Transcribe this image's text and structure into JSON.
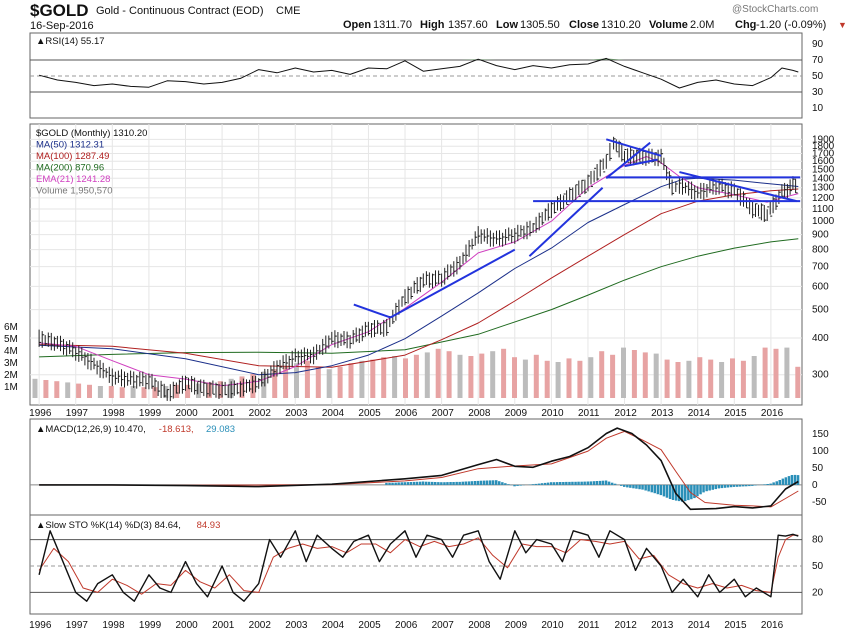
{
  "header": {
    "symbol": "$GOLD",
    "description": "Gold - Continuous Contract (EOD)",
    "exchange": "CME",
    "date": "16-Sep-2016",
    "watermark": "@StockCharts.com",
    "open_label": "Open",
    "open_value": "1311.70",
    "high_label": "High",
    "high_value": "1357.60",
    "low_label": "Low",
    "low_value": "1305.50",
    "close_label": "Close",
    "close_value": "1310.20",
    "volume_label": "Volume",
    "volume_value": "2.0M",
    "chg_label": "Chg",
    "chg_value": "-1.20 (-0.09%)",
    "chg_arrow": "▼",
    "colors": {
      "down": "#c0392b",
      "text": "#111111",
      "watermark": "#777777"
    }
  },
  "chart_data": [
    {
      "type": "line",
      "title": "RSI(14) 55.17",
      "legend": "▲RSI(14) 55.17",
      "yticks": [
        90,
        70,
        50,
        30,
        10
      ],
      "ylim": [
        0,
        100
      ],
      "reference_lines": [
        70,
        50,
        30
      ],
      "x": [
        1996.0,
        1996.5,
        1997.0,
        1997.5,
        1998.0,
        1998.5,
        1999.0,
        1999.5,
        2000.0,
        2000.5,
        2001.0,
        2001.5,
        2002.0,
        2002.5,
        2003.0,
        2003.5,
        2004.0,
        2004.5,
        2005.0,
        2005.5,
        2006.0,
        2006.5,
        2007.0,
        2007.5,
        2008.0,
        2008.5,
        2009.0,
        2009.5,
        2010.0,
        2010.5,
        2011.0,
        2011.5,
        2012.0,
        2012.5,
        2013.0,
        2013.5,
        2014.0,
        2014.5,
        2015.0,
        2015.5,
        2016.0,
        2016.3,
        2016.6,
        2016.75
      ],
      "values": [
        51,
        45,
        42,
        38,
        40,
        37,
        36,
        44,
        43,
        40,
        42,
        47,
        58,
        54,
        60,
        55,
        57,
        52,
        60,
        59,
        69,
        56,
        59,
        62,
        71,
        63,
        58,
        63,
        60,
        64,
        65,
        72,
        62,
        54,
        46,
        35,
        42,
        45,
        40,
        38,
        48,
        60,
        57,
        55
      ],
      "colors": {
        "line": "#111111",
        "fill_high": "#5a8a5a",
        "fill_low": "#5a8a5a"
      }
    },
    {
      "type": "line",
      "title": "$GOLD (Monthly) 1310.20",
      "legend": [
        {
          "label": "$GOLD (Monthly) 1310.20",
          "color": "#111111"
        },
        {
          "label": "MA(50) 1312.31",
          "color": "#1b2f8a"
        },
        {
          "label": "MA(100) 1287.49",
          "color": "#b02020"
        },
        {
          "label": "MA(200) 870.96",
          "color": "#206b20"
        },
        {
          "label": "EMA(21) 1241.28",
          "color": "#d040c0"
        },
        {
          "label": "Volume 1,950,570",
          "color": "#777777"
        }
      ],
      "price_yticks": [
        1900,
        1800,
        1700,
        1600,
        1500,
        1400,
        1300,
        1200,
        1100,
        1000,
        900,
        800,
        700,
        600,
        500,
        400,
        300
      ],
      "volume_yticks": [
        "6M",
        "5M",
        "4M",
        "3M",
        "2M",
        "1M"
      ],
      "volume_tick_values": [
        6,
        5,
        4,
        3,
        2,
        1
      ],
      "xticks": [
        "1996",
        "1997",
        "1998",
        "1999",
        "2000",
        "2001",
        "2002",
        "2003",
        "2004",
        "2005",
        "2006",
        "2007",
        "2008",
        "2009",
        "2010",
        "2011",
        "2012",
        "2013",
        "2014",
        "2015",
        "2016"
      ],
      "close_series": {
        "x": [
          1996.0,
          1996.5,
          1997.0,
          1997.5,
          1998.0,
          1998.5,
          1999.0,
          1999.5,
          2000.0,
          2000.5,
          2001.0,
          2001.5,
          2002.0,
          2002.5,
          2003.0,
          2003.5,
          2004.0,
          2004.5,
          2005.0,
          2005.5,
          2006.0,
          2006.5,
          2007.0,
          2007.5,
          2008.0,
          2008.5,
          2009.0,
          2009.5,
          2010.0,
          2010.5,
          2011.0,
          2011.5,
          2011.7,
          2012.0,
          2012.5,
          2013.0,
          2013.3,
          2013.5,
          2014.0,
          2014.5,
          2015.0,
          2015.5,
          2015.9,
          2016.3,
          2016.6,
          2016.75
        ],
        "values": [
          400,
          385,
          360,
          325,
          295,
          290,
          287,
          258,
          282,
          270,
          266,
          270,
          282,
          318,
          345,
          350,
          398,
          395,
          430,
          435,
          550,
          630,
          640,
          720,
          900,
          870,
          900,
          950,
          1100,
          1220,
          1350,
          1600,
          1850,
          1670,
          1660,
          1650,
          1300,
          1330,
          1250,
          1320,
          1270,
          1100,
          1060,
          1250,
          1330,
          1310
        ]
      },
      "ma50": {
        "x": [
          1996.0,
          1998.0,
          2000.0,
          2002.0,
          2003.0,
          2004.0,
          2005.0,
          2006.0,
          2007.0,
          2008.0,
          2009.0,
          2010.0,
          2011.0,
          2012.0,
          2013.0,
          2013.6,
          2014.0,
          2015.0,
          2016.0,
          2016.75
        ],
        "values": [
          378,
          368,
          340,
          300,
          305,
          322,
          350,
          398,
          475,
          570,
          690,
          810,
          990,
          1140,
          1310,
          1390,
          1400,
          1380,
          1340,
          1312
        ]
      },
      "ma100": {
        "x": [
          1996.0,
          1998.0,
          2000.0,
          2002.0,
          2004.0,
          2006.0,
          2007.0,
          2008.0,
          2009.0,
          2010.0,
          2011.0,
          2012.0,
          2013.0,
          2014.0,
          2015.0,
          2016.0,
          2016.75
        ],
        "values": [
          380,
          375,
          355,
          322,
          318,
          350,
          395,
          450,
          535,
          640,
          760,
          900,
          1060,
          1170,
          1230,
          1270,
          1287
        ]
      },
      "ma200": {
        "x": [
          1996.0,
          1998.0,
          2000.0,
          2002.0,
          2004.0,
          2006.0,
          2008.0,
          2010.0,
          2011.0,
          2012.0,
          2013.0,
          2014.0,
          2015.0,
          2016.0,
          2016.75
        ],
        "values": [
          345,
          352,
          357,
          358,
          355,
          365,
          412,
          500,
          560,
          630,
          700,
          760,
          810,
          850,
          871
        ]
      },
      "ema21": {
        "x": [
          1996.0,
          1997.0,
          1998.0,
          1999.0,
          2000.0,
          2001.0,
          2002.0,
          2003.0,
          2004.0,
          2005.0,
          2006.0,
          2007.0,
          2008.0,
          2009.0,
          2010.0,
          2011.0,
          2012.0,
          2012.6,
          2013.0,
          2013.5,
          2014.0,
          2015.0,
          2015.9,
          2016.4,
          2016.75
        ],
        "values": [
          385,
          375,
          335,
          300,
          290,
          275,
          285,
          320,
          380,
          420,
          505,
          620,
          780,
          850,
          1000,
          1300,
          1550,
          1660,
          1580,
          1420,
          1300,
          1230,
          1160,
          1210,
          1241
        ]
      },
      "volume_millions": [
        1.6,
        1.5,
        1.4,
        1.3,
        1.2,
        1.1,
        1.0,
        1.0,
        0.9,
        1.0,
        0.9,
        0.9,
        1.0,
        1.1,
        1.1,
        1.2,
        1.3,
        1.4,
        1.6,
        1.8,
        2.0,
        2.2,
        2.4,
        2.6,
        2.9,
        3.1,
        2.6,
        2.4,
        2.6,
        2.9,
        3.1,
        3.2,
        3.4,
        3.5,
        3.3,
        3.6,
        3.8,
        4.1,
        3.9,
        3.6,
        3.5,
        3.7,
        3.9,
        4.1,
        3.4,
        3.2,
        3.6,
        3.1,
        3.0,
        3.3,
        3.1,
        3.4,
        3.9,
        3.6,
        4.2,
        4.0,
        3.8,
        3.7,
        3.2,
        3.0,
        3.1,
        3.4,
        3.2,
        3.0,
        3.3,
        3.1,
        3.5,
        4.2,
        4.1,
        4.2,
        2.6
      ],
      "trendlines_data_units": [
        {
          "x": [
            2004.6,
            2005.6
          ],
          "y": [
            520,
            470
          ]
        },
        {
          "x": [
            2005.6,
            2009.0
          ],
          "y": [
            470,
            800
          ]
        },
        {
          "x": [
            2009.4,
            2011.4
          ],
          "y": [
            760,
            1300
          ]
        },
        {
          "x": [
            2011.5,
            2012.7
          ],
          "y": [
            1400,
            1850
          ]
        },
        {
          "x": [
            2011.5,
            2013.0
          ],
          "y": [
            1900,
            1670
          ]
        },
        {
          "x": [
            2012.0,
            2012.9
          ],
          "y": [
            1540,
            1620
          ]
        },
        {
          "x": [
            2013.5,
            2016.7
          ],
          "y": [
            1470,
            1170
          ]
        },
        {
          "x": [
            2011.5,
            2016.8
          ],
          "y": [
            1410,
            1410
          ]
        },
        {
          "x": [
            2009.5,
            2016.8
          ],
          "y": [
            1170,
            1170
          ]
        }
      ],
      "colors": {
        "candle": "#222222",
        "volume_up": "#e7a3a3",
        "volume_down": "#bcbcbc",
        "trendline": "#2233dd"
      }
    },
    {
      "type": "line",
      "title": "MACD(12,26,9) 10.470, -18.613, 29.083",
      "legend": [
        {
          "label": "▲MACD(12,26,9) 10.470,",
          "color": "#111111"
        },
        {
          "label": "-18.613,",
          "color": "#c0392b"
        },
        {
          "label": "29.083",
          "color": "#2a8fb8"
        }
      ],
      "yticks": [
        150,
        100,
        50,
        0,
        -50
      ],
      "ylim": [
        -80,
        180
      ],
      "macd": {
        "x": [
          1996.0,
          1998.0,
          2000.0,
          2002.0,
          2004.0,
          2006.0,
          2007.0,
          2008.0,
          2008.5,
          2009.0,
          2009.5,
          2010.0,
          2010.5,
          2011.0,
          2011.5,
          2011.8,
          2012.2,
          2012.6,
          2013.0,
          2013.4,
          2013.8,
          2014.5,
          2015.0,
          2015.5,
          2016.0,
          2016.4,
          2016.75
        ],
        "values": [
          0,
          0,
          -2,
          -5,
          2,
          18,
          28,
          60,
          75,
          55,
          52,
          70,
          84,
          110,
          152,
          168,
          152,
          118,
          72,
          -25,
          -72,
          -70,
          -64,
          -68,
          -62,
          -12,
          10
        ]
      },
      "signal": {
        "x": [
          1996.0,
          2000.0,
          2004.0,
          2006.0,
          2007.0,
          2008.0,
          2009.0,
          2010.0,
          2011.0,
          2011.5,
          2012.0,
          2012.5,
          2013.0,
          2013.4,
          2013.8,
          2014.2,
          2015.0,
          2015.5,
          2016.0,
          2016.4,
          2016.75
        ],
        "values": [
          0,
          -1,
          1,
          12,
          22,
          48,
          56,
          62,
          100,
          138,
          158,
          132,
          104,
          40,
          -22,
          -52,
          -60,
          -62,
          -65,
          -40,
          -18
        ]
      },
      "histogram": {
        "x": [
          2005.5,
          2006.0,
          2006.5,
          2007.0,
          2007.5,
          2008.0,
          2008.5,
          2009.0,
          2010.0,
          2011.0,
          2011.5,
          2012.0,
          2012.5,
          2013.0,
          2013.3,
          2013.6,
          2013.9,
          2014.2,
          2014.6,
          2015.0,
          2015.5,
          2016.0,
          2016.2,
          2016.4,
          2016.6,
          2016.75
        ],
        "values": [
          6,
          8,
          10,
          8,
          9,
          12,
          14,
          -4,
          8,
          10,
          13,
          -6,
          -14,
          -30,
          -44,
          -50,
          -40,
          -20,
          -10,
          -6,
          -3,
          4,
          12,
          22,
          30,
          29
        ]
      },
      "colors": {
        "macd": "#111111",
        "signal": "#c0392b",
        "histogram": "#2a8fb8"
      }
    },
    {
      "type": "line",
      "title": "Slow STO %K(14) %D(3) 84.64, 84.93",
      "legend": [
        {
          "label": "▲Slow STO %K(14) %D(3) 84.64,",
          "color": "#111111"
        },
        {
          "label": "84.93",
          "color": "#c0392b"
        }
      ],
      "yticks": [
        80,
        50,
        20
      ],
      "ylim": [
        0,
        100
      ],
      "reference_lines": [
        80,
        50,
        20
      ],
      "xticks": [
        "1996",
        "1997",
        "1998",
        "1999",
        "2000",
        "2001",
        "2002",
        "2003",
        "2004",
        "2005",
        "2006",
        "2007",
        "2008",
        "2009",
        "2010",
        "2011",
        "2012",
        "2013",
        "2014",
        "2015",
        "2016"
      ],
      "k": {
        "x": [
          1996.0,
          1996.3,
          1996.6,
          1997.0,
          1997.3,
          1997.6,
          1998.0,
          1998.3,
          1998.6,
          1999.0,
          1999.3,
          1999.6,
          2000.0,
          2000.3,
          2000.6,
          2001.0,
          2001.3,
          2001.6,
          2002.0,
          2002.3,
          2002.6,
          2003.0,
          2003.3,
          2003.6,
          2004.0,
          2004.3,
          2004.6,
          2005.0,
          2005.3,
          2005.6,
          2006.0,
          2006.3,
          2006.6,
          2007.0,
          2007.3,
          2007.6,
          2008.0,
          2008.3,
          2008.6,
          2009.0,
          2009.3,
          2009.6,
          2010.0,
          2010.3,
          2010.6,
          2011.0,
          2011.3,
          2011.6,
          2012.0,
          2012.3,
          2012.6,
          2013.0,
          2013.3,
          2013.6,
          2014.0,
          2014.3,
          2014.6,
          2015.0,
          2015.3,
          2015.6,
          2016.0,
          2016.2,
          2016.4,
          2016.6,
          2016.75
        ],
        "values": [
          40,
          90,
          60,
          20,
          10,
          30,
          40,
          20,
          10,
          40,
          25,
          20,
          55,
          30,
          15,
          50,
          20,
          10,
          30,
          80,
          60,
          90,
          55,
          85,
          70,
          60,
          78,
          85,
          55,
          75,
          90,
          60,
          85,
          80,
          60,
          85,
          90,
          55,
          35,
          90,
          65,
          80,
          75,
          55,
          90,
          85,
          60,
          90,
          80,
          45,
          70,
          50,
          20,
          35,
          15,
          40,
          20,
          35,
          15,
          25,
          15,
          85,
          84,
          86,
          84
        ]
      },
      "d": {
        "x": [
          1996.0,
          1996.4,
          1996.8,
          1997.2,
          1997.6,
          1998.0,
          1998.4,
          1998.8,
          1999.2,
          1999.6,
          2000.0,
          2000.4,
          2000.8,
          2001.2,
          2001.6,
          2002.0,
          2002.4,
          2002.8,
          2003.2,
          2003.6,
          2004.0,
          2004.4,
          2004.8,
          2005.2,
          2005.6,
          2006.0,
          2006.4,
          2006.8,
          2007.2,
          2007.6,
          2008.0,
          2008.4,
          2008.8,
          2009.2,
          2009.6,
          2010.0,
          2010.4,
          2010.8,
          2011.2,
          2011.6,
          2012.0,
          2012.4,
          2012.8,
          2013.2,
          2013.6,
          2014.0,
          2014.4,
          2014.8,
          2015.2,
          2015.6,
          2016.0,
          2016.2,
          2016.4,
          2016.6,
          2016.75
        ],
        "values": [
          45,
          70,
          55,
          25,
          20,
          35,
          28,
          18,
          30,
          28,
          45,
          32,
          25,
          40,
          22,
          20,
          60,
          70,
          75,
          70,
          72,
          65,
          75,
          75,
          65,
          80,
          72,
          78,
          72,
          75,
          82,
          62,
          48,
          75,
          72,
          72,
          65,
          80,
          78,
          75,
          78,
          58,
          62,
          40,
          30,
          25,
          30,
          25,
          28,
          22,
          20,
          60,
          80,
          85,
          85
        ]
      },
      "colors": {
        "k": "#111111",
        "d": "#c0392b"
      }
    }
  ]
}
